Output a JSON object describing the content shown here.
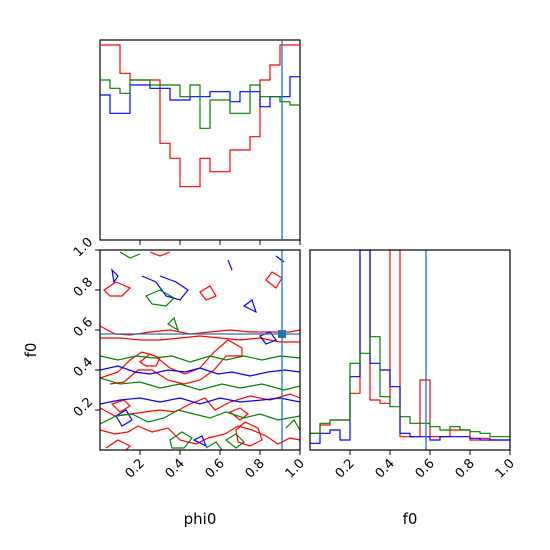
{
  "chart_data": {
    "type": "corner",
    "series_colors": [
      "#ff0000",
      "#0000ff",
      "#008000"
    ],
    "truth_color": "#1f77b4",
    "truth": {
      "phi0": 0.91,
      "f0": 0.58
    },
    "panels": [
      {
        "id": "hist-phi0",
        "type": "step-histogram",
        "variable": "phi0",
        "xlim": [
          0.0,
          1.0
        ],
        "bins": [
          0.0,
          0.05,
          0.1,
          0.15,
          0.2,
          0.25,
          0.3,
          0.35,
          0.4,
          0.45,
          0.5,
          0.55,
          0.6,
          0.65,
          0.7,
          0.75,
          0.8,
          0.85,
          0.9,
          0.95,
          1.0
        ],
        "series": [
          {
            "color": "#ff0000",
            "values": [
              1.17,
              1.17,
              1.0,
              0.96,
              0.96,
              0.96,
              0.58,
              0.49,
              0.32,
              0.32,
              0.49,
              0.41,
              0.41,
              0.54,
              0.54,
              0.62,
              0.96,
              1.05,
              1.17,
              1.17
            ]
          },
          {
            "color": "#0000ff",
            "values": [
              0.87,
              0.76,
              0.76,
              0.93,
              0.93,
              0.91,
              0.91,
              0.84,
              0.84,
              0.86,
              0.86,
              0.89,
              0.89,
              0.83,
              0.89,
              0.89,
              0.8,
              0.86,
              0.86,
              0.98
            ]
          },
          {
            "color": "#008000",
            "values": [
              0.96,
              0.91,
              0.88,
              0.96,
              0.96,
              0.93,
              0.93,
              0.93,
              0.86,
              0.93,
              0.67,
              0.84,
              0.84,
              0.76,
              0.76,
              0.93,
              0.86,
              0.86,
              0.83,
              0.81
            ]
          }
        ]
      },
      {
        "id": "hist-f0",
        "type": "step-histogram",
        "variable": "f0",
        "xlim": [
          0.0,
          1.0
        ],
        "bins": [
          0.0,
          0.05,
          0.1,
          0.15,
          0.2,
          0.25,
          0.3,
          0.35,
          0.4,
          0.45,
          0.5,
          0.55,
          0.6,
          0.65,
          0.7,
          0.75,
          0.8,
          0.85,
          0.9,
          0.95,
          1.0
        ],
        "series": [
          {
            "color": "#ff0000",
            "values": [
              0.5,
              0.75,
              0.9,
              0.9,
              1.7,
              6.0,
              1.5,
              1.4,
              6.0,
              0.4,
              0.4,
              2.1,
              0.4,
              0.4,
              0.6,
              0.6,
              0.3,
              0.35,
              0.3,
              0.3
            ]
          },
          {
            "color": "#0000ff",
            "values": [
              0.2,
              0.5,
              0.6,
              0.3,
              2.2,
              6.0,
              2.6,
              2.4,
              1.9,
              0.5,
              0.4,
              0.4,
              0.3,
              0.4,
              0.4,
              0.4,
              0.35,
              0.3,
              0.3,
              0.3
            ]
          },
          {
            "color": "#008000",
            "values": [
              0.5,
              0.8,
              0.9,
              0.9,
              2.6,
              2.9,
              3.4,
              1.6,
              1.3,
              1.0,
              0.8,
              0.8,
              0.7,
              0.6,
              0.7,
              0.6,
              0.55,
              0.5,
              0.4,
              0.4
            ]
          }
        ]
      },
      {
        "id": "contour-phi0-f0",
        "type": "contour",
        "x": "phi0",
        "y": "f0",
        "xlim": [
          0.0,
          1.0
        ],
        "ylim": [
          0.0,
          1.0
        ]
      }
    ],
    "axes": {
      "x_label_left": "phi0",
      "x_label_right": "f0",
      "y_label": "f0",
      "ticks": [
        0.2,
        0.4,
        0.6,
        0.8,
        1.0
      ],
      "tick_labels": [
        "0.2",
        "0.4",
        "0.6",
        "0.8",
        "1.0"
      ]
    }
  }
}
